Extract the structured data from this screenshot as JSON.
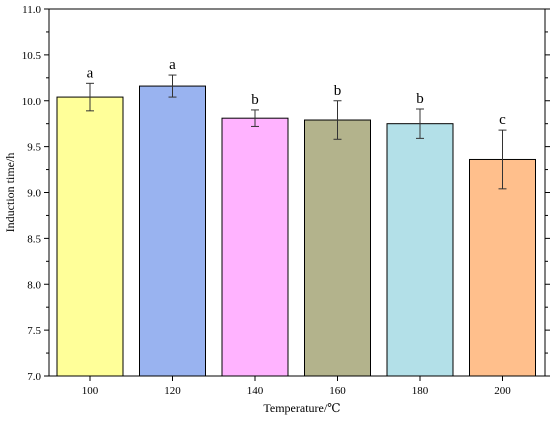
{
  "chart_data": {
    "type": "bar",
    "xlabel": "Temperature/℃",
    "ylabel": "Induction time/h",
    "ylim": [
      7.0,
      11.0
    ],
    "yticks": [
      "7.0",
      "7.5",
      "8.0",
      "8.5",
      "9.0",
      "9.5",
      "10.0",
      "10.5",
      "11.0"
    ],
    "categories": [
      "100",
      "120",
      "140",
      "160",
      "180",
      "200"
    ],
    "values": [
      10.04,
      10.16,
      9.81,
      9.79,
      9.75,
      9.36
    ],
    "errors": [
      0.15,
      0.12,
      0.09,
      0.21,
      0.16,
      0.32
    ],
    "significance": [
      "a",
      "a",
      "b",
      "b",
      "b",
      "c"
    ],
    "colors": [
      "#ffff99",
      "#99b3f0",
      "#ffb3ff",
      "#b3b38c",
      "#b3e0e8",
      "#ffbf8c"
    ],
    "grid": false,
    "legend": "none"
  }
}
